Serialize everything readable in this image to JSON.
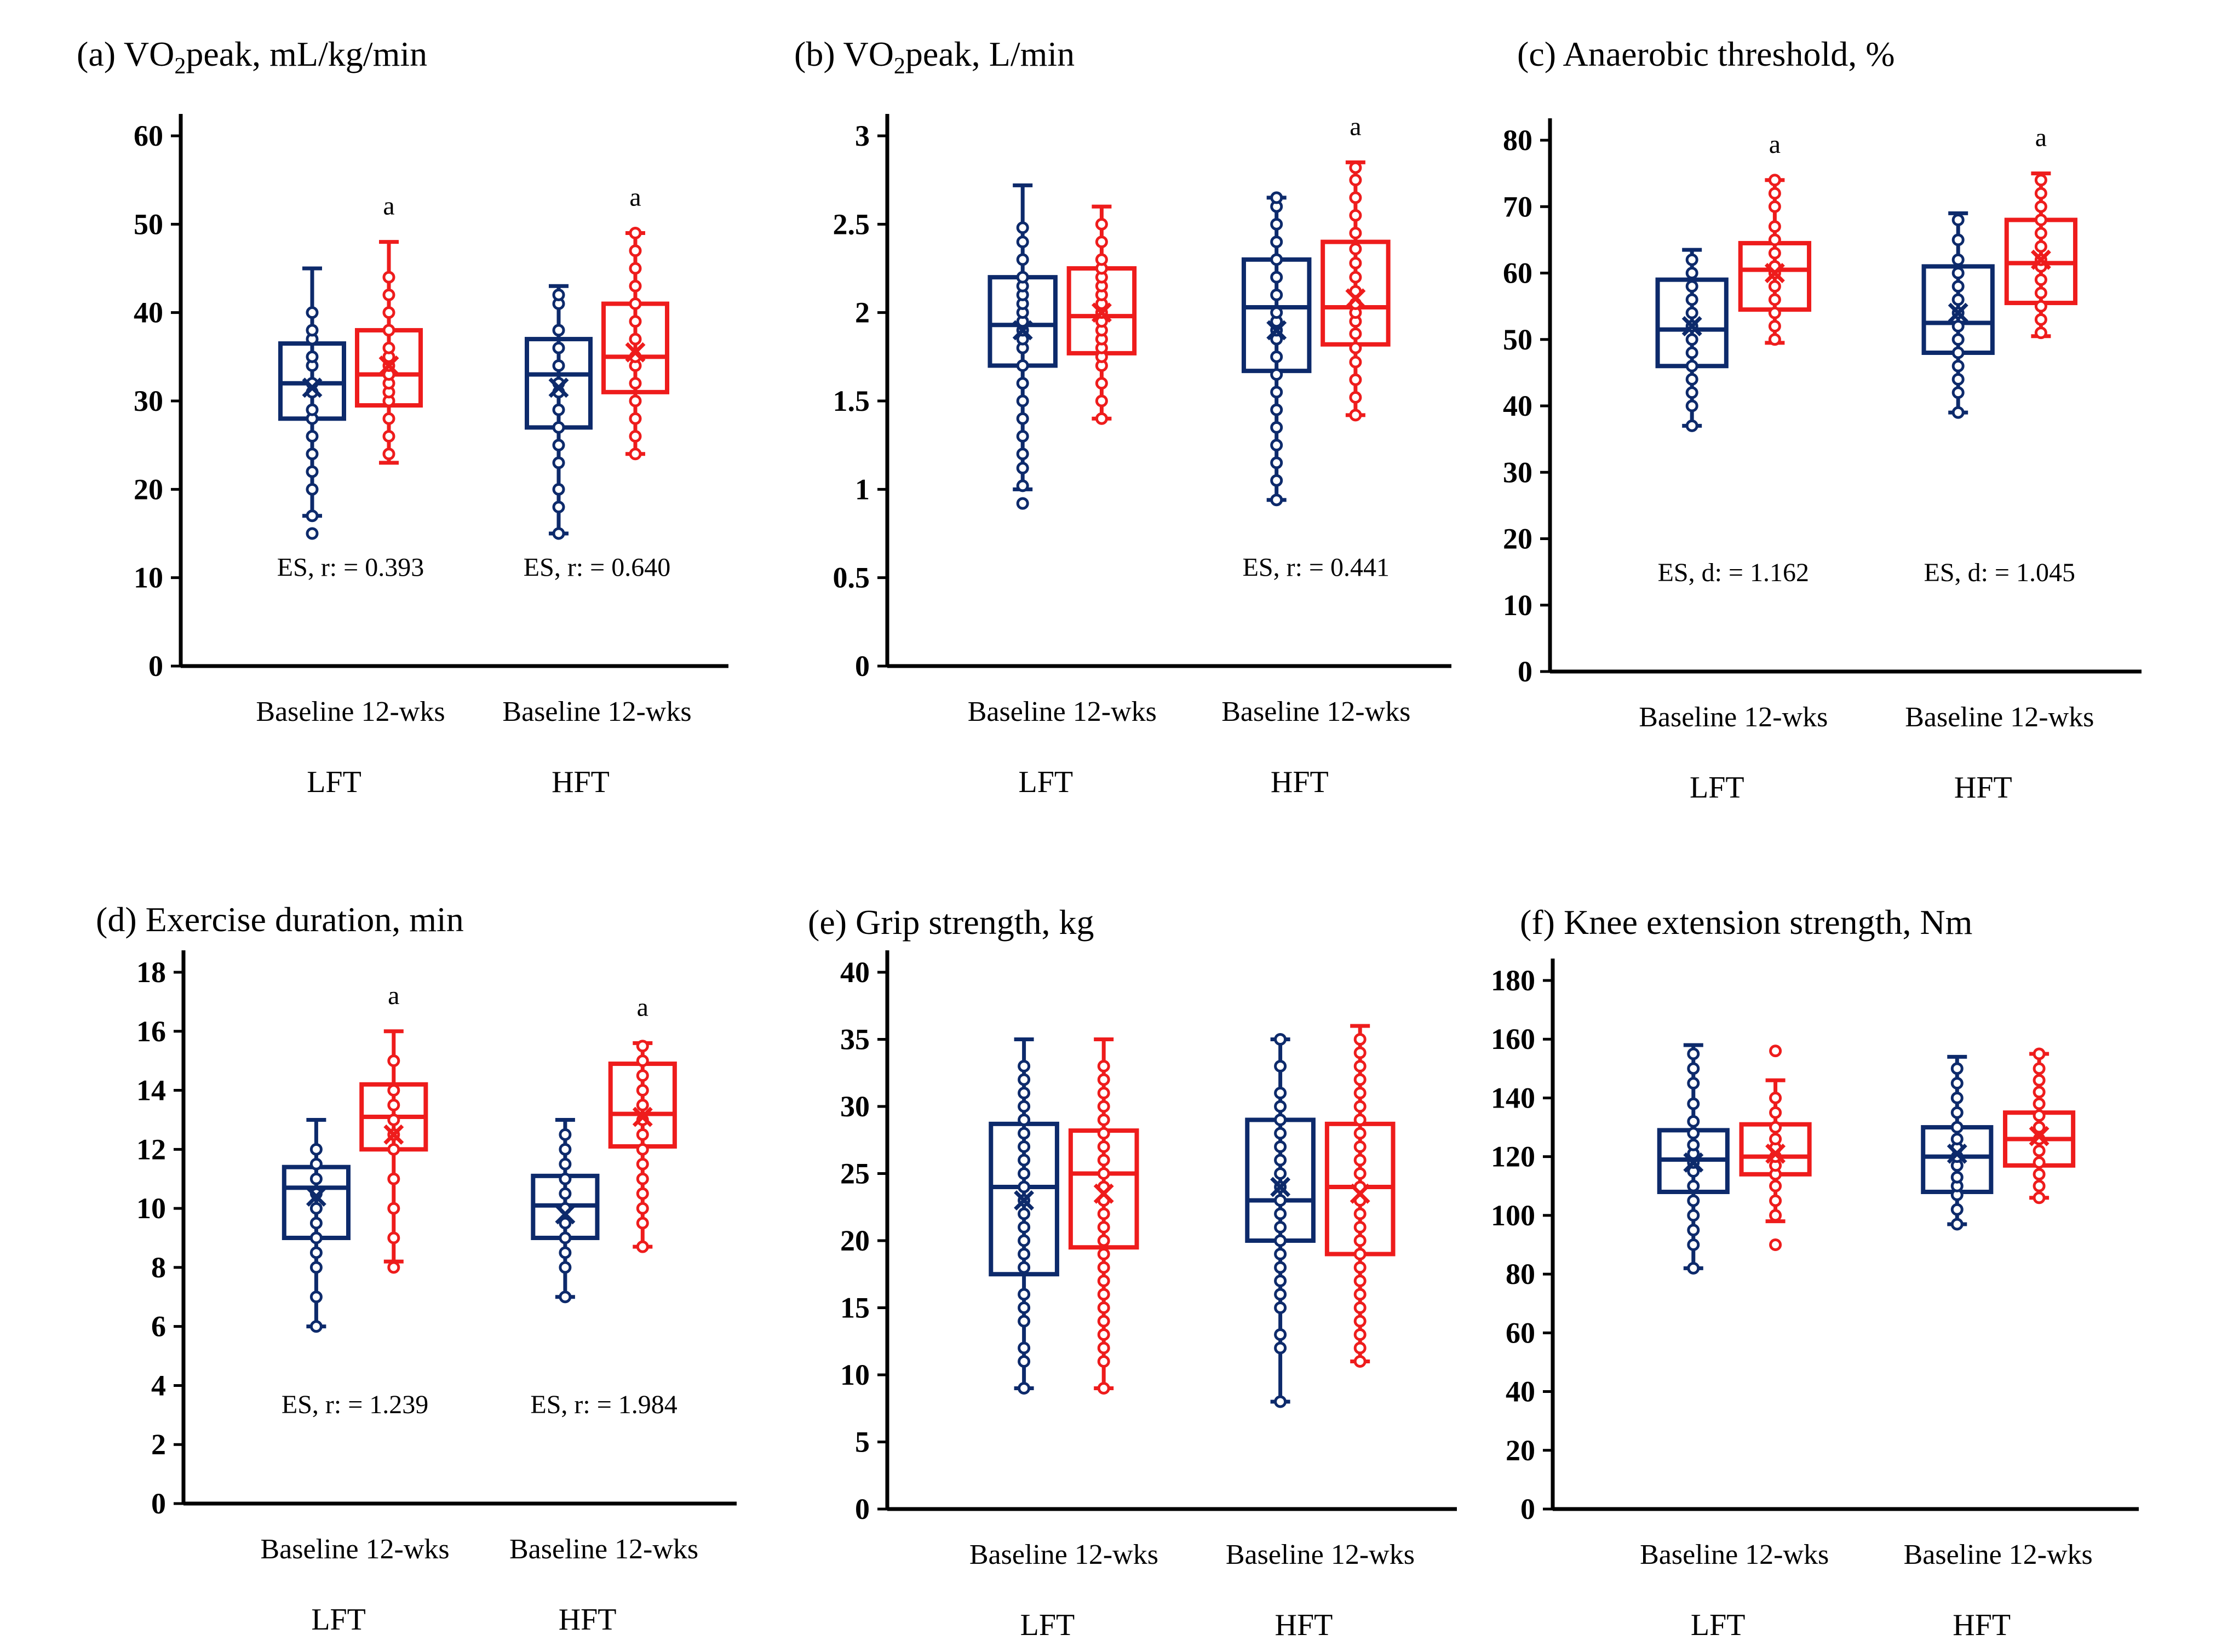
{
  "colors": {
    "baseline": "#0d2a6b",
    "followup": "#ee1c1c",
    "axis": "#000000"
  },
  "chart_data": [
    {
      "type": "box",
      "title_prefix": "(a) VO",
      "title_sub": "2",
      "title_suffix": "peak, mL/kg/min",
      "ylim": [
        0,
        60
      ],
      "yticks": [
        "0",
        "10",
        "20",
        "30",
        "40",
        "50",
        "60"
      ],
      "group_cat_label": "Baseline 12-wks",
      "groups": [
        {
          "name": "LFT",
          "es": "ES,  r: = 0.393",
          "sig": "a",
          "baseline": {
            "min": 17,
            "q1": 28,
            "median": 32,
            "q3": 36.5,
            "max": 45,
            "mean": 31.5,
            "points": [
              15,
              17,
              20,
              22,
              24,
              26,
              28,
              29,
              31,
              32,
              34,
              35,
              37,
              38,
              40
            ]
          },
          "followup": {
            "min": 23,
            "q1": 29.5,
            "median": 33,
            "q3": 38,
            "max": 48,
            "mean": 34,
            "points": [
              24,
              26,
              28,
              30,
              31,
              32,
              33,
              34,
              35,
              36,
              38,
              40,
              42,
              44
            ]
          }
        },
        {
          "name": "HFT",
          "es": "ES,  r: = 0.640",
          "sig": "a",
          "baseline": {
            "min": 15,
            "q1": 27,
            "median": 33,
            "q3": 37,
            "max": 43,
            "mean": 31.5,
            "points": [
              15,
              18,
              20,
              23,
              25,
              27,
              29,
              31,
              32,
              34,
              36,
              38,
              41,
              42
            ]
          },
          "followup": {
            "min": 24,
            "q1": 31,
            "median": 35,
            "q3": 41,
            "max": 49,
            "mean": 35.5,
            "points": [
              24,
              26,
              28,
              30,
              32,
              34,
              35,
              37,
              39,
              41,
              43,
              45,
              47,
              49
            ]
          }
        }
      ]
    },
    {
      "type": "box",
      "title_prefix": "(b) VO",
      "title_sub": "2",
      "title_suffix": "peak, L/min",
      "ylim": [
        0,
        3
      ],
      "yticks": [
        "0",
        "0.5",
        "1",
        "1.5",
        "2",
        "2.5",
        "3"
      ],
      "group_cat_label": "Baseline 12-wks",
      "groups": [
        {
          "name": "LFT",
          "es": "",
          "sig": "",
          "baseline": {
            "min": 1.0,
            "q1": 1.7,
            "median": 1.93,
            "q3": 2.2,
            "max": 2.72,
            "mean": 1.9,
            "points": [
              0.92,
              1.02,
              1.12,
              1.2,
              1.3,
              1.4,
              1.5,
              1.6,
              1.7,
              1.8,
              1.85,
              1.9,
              1.95,
              2.0,
              2.05,
              2.1,
              2.15,
              2.2,
              2.3,
              2.4,
              2.48
            ]
          },
          "followup": {
            "min": 1.4,
            "q1": 1.77,
            "median": 1.98,
            "q3": 2.25,
            "max": 2.6,
            "mean": 2.0,
            "points": [
              1.4,
              1.5,
              1.6,
              1.7,
              1.75,
              1.8,
              1.85,
              1.9,
              1.95,
              2.0,
              2.05,
              2.1,
              2.15,
              2.2,
              2.25,
              2.3,
              2.4,
              2.5
            ]
          }
        },
        {
          "name": "HFT",
          "es": "ES,  r: = 0.441",
          "sig": "a",
          "baseline": {
            "min": 0.94,
            "q1": 1.67,
            "median": 2.03,
            "q3": 2.3,
            "max": 2.65,
            "mean": 1.9,
            "points": [
              0.94,
              1.05,
              1.15,
              1.25,
              1.35,
              1.45,
              1.55,
              1.65,
              1.75,
              1.85,
              1.9,
              1.95,
              2.0,
              2.1,
              2.2,
              2.3,
              2.4,
              2.5,
              2.6,
              2.65
            ]
          },
          "followup": {
            "min": 1.42,
            "q1": 1.82,
            "median": 2.03,
            "q3": 2.4,
            "max": 2.85,
            "mean": 2.08,
            "points": [
              1.42,
              1.52,
              1.62,
              1.72,
              1.8,
              1.88,
              1.95,
              2.0,
              2.05,
              2.12,
              2.2,
              2.28,
              2.36,
              2.45,
              2.55,
              2.65,
              2.75,
              2.82
            ]
          }
        }
      ]
    },
    {
      "type": "box",
      "title_prefix": "(c) Anaerobic threshold, %",
      "title_sub": "",
      "title_suffix": "",
      "ylim": [
        0,
        80
      ],
      "yticks": [
        "0",
        "10",
        "20",
        "30",
        "40",
        "50",
        "60",
        "70",
        "80"
      ],
      "group_cat_label": "Baseline 12-wks",
      "groups": [
        {
          "name": "LFT",
          "es": "ES,  d: = 1.162",
          "sig": "a",
          "baseline": {
            "min": 37,
            "q1": 46,
            "median": 51.5,
            "q3": 59,
            "max": 63.5,
            "mean": 52,
            "points": [
              37,
              40,
              42,
              44,
              46,
              48,
              50,
              52,
              54,
              56,
              58,
              60,
              62
            ]
          },
          "followup": {
            "min": 49.5,
            "q1": 54.5,
            "median": 60.5,
            "q3": 64.5,
            "max": 74,
            "mean": 60,
            "points": [
              50,
              52,
              54,
              56,
              58,
              60,
              61,
              63,
              65,
              67,
              70,
              72,
              74
            ]
          }
        },
        {
          "name": "HFT",
          "es": "ES,  d: = 1.045",
          "sig": "a",
          "baseline": {
            "min": 39,
            "q1": 48,
            "median": 52.5,
            "q3": 61,
            "max": 69,
            "mean": 54,
            "points": [
              39,
              42,
              44,
              46,
              48,
              50,
              52,
              54,
              56,
              58,
              60,
              62,
              65,
              68
            ]
          },
          "followup": {
            "min": 50.5,
            "q1": 55.5,
            "median": 61.5,
            "q3": 68,
            "max": 75,
            "mean": 62,
            "points": [
              51,
              53,
              55,
              57,
              59,
              61,
              62,
              64,
              66,
              68,
              70,
              72,
              74
            ]
          }
        }
      ]
    },
    {
      "type": "box",
      "title_prefix": "(d) Exercise duration, min",
      "title_sub": "",
      "title_suffix": "",
      "ylim": [
        0,
        18
      ],
      "yticks": [
        "0",
        "2",
        "4",
        "6",
        "8",
        "10",
        "12",
        "14",
        "16",
        "18"
      ],
      "group_cat_label": "Baseline 12-wks",
      "groups": [
        {
          "name": "LFT",
          "es": "ES,  r: = 1.239",
          "sig": "a",
          "baseline": {
            "min": 6,
            "q1": 9,
            "median": 10.7,
            "q3": 11.4,
            "max": 13,
            "mean": 10.4,
            "points": [
              6,
              7,
              8,
              8.5,
              9,
              9.5,
              10,
              10.5,
              11,
              11.5,
              12
            ]
          },
          "followup": {
            "min": 8.2,
            "q1": 12,
            "median": 13.1,
            "q3": 14.2,
            "max": 16,
            "mean": 12.5,
            "points": [
              8,
              9,
              10,
              11,
              12,
              12.5,
              13,
              13.5,
              14,
              15
            ]
          }
        },
        {
          "name": "HFT",
          "es": "ES,  r: = 1.984",
          "sig": "a",
          "baseline": {
            "min": 7,
            "q1": 9,
            "median": 10.1,
            "q3": 11.1,
            "max": 13,
            "mean": 9.8,
            "points": [
              7,
              8,
              8.5,
              9,
              9.5,
              10,
              10.5,
              11,
              11.5,
              12,
              12.5
            ]
          },
          "followup": {
            "min": 8.7,
            "q1": 12.1,
            "median": 13.2,
            "q3": 14.9,
            "max": 15.6,
            "mean": 13.1,
            "points": [
              8.7,
              9.5,
              10,
              10.5,
              11,
              11.5,
              12,
              12.5,
              13,
              13.5,
              14,
              14.5,
              15,
              15.5
            ]
          }
        }
      ]
    },
    {
      "type": "box",
      "title_prefix": "(e) Grip strength, kg",
      "title_sub": "",
      "title_suffix": "",
      "ylim": [
        0,
        40
      ],
      "yticks": [
        "0",
        "5",
        "10",
        "15",
        "20",
        "25",
        "30",
        "35",
        "40"
      ],
      "group_cat_label": "Baseline 12-wks",
      "groups": [
        {
          "name": "LFT",
          "es": "",
          "sig": "",
          "baseline": {
            "min": 9,
            "q1": 17.5,
            "median": 24,
            "q3": 28.7,
            "max": 35,
            "mean": 23,
            "points": [
              9,
              11,
              12,
              14,
              15,
              16,
              18,
              19,
              20,
              21,
              22,
              23,
              24,
              25,
              26,
              27,
              28,
              29,
              30,
              31,
              32,
              33
            ]
          },
          "followup": {
            "min": 9,
            "q1": 19.5,
            "median": 25,
            "q3": 28.2,
            "max": 35,
            "mean": 23.5,
            "points": [
              9,
              11,
              12,
              13,
              14,
              15,
              16,
              17,
              18,
              19,
              20,
              21,
              22,
              23,
              24,
              25,
              26,
              27,
              28,
              29,
              30,
              31,
              32,
              33
            ]
          }
        },
        {
          "name": "HFT",
          "es": "",
          "sig": "",
          "baseline": {
            "min": 8,
            "q1": 20,
            "median": 23,
            "q3": 29,
            "max": 35,
            "mean": 24,
            "points": [
              8,
              12,
              13,
              15,
              16,
              17,
              18,
              19,
              20,
              21,
              22,
              23,
              24,
              25,
              26,
              27,
              28,
              29,
              30,
              31,
              33,
              35
            ]
          },
          "followup": {
            "min": 11,
            "q1": 19,
            "median": 24,
            "q3": 28.7,
            "max": 36,
            "mean": 23.5,
            "points": [
              11,
              12,
              13,
              14,
              15,
              16,
              17,
              18,
              19,
              20,
              21,
              22,
              23,
              24,
              25,
              26,
              27,
              28,
              29,
              30,
              31,
              32,
              33,
              34,
              35
            ]
          }
        }
      ]
    },
    {
      "type": "box",
      "title_prefix": "(f) Knee extension strength, Nm",
      "title_sub": "",
      "title_suffix": "",
      "ylim": [
        0,
        180
      ],
      "yticks": [
        "0",
        "20",
        "40",
        "60",
        "80",
        "100",
        "120",
        "140",
        "160",
        "180"
      ],
      "group_cat_label": "Baseline 12-wks",
      "groups": [
        {
          "name": "LFT",
          "es": "",
          "sig": "",
          "baseline": {
            "min": 82,
            "q1": 108,
            "median": 119,
            "q3": 129,
            "max": 158,
            "mean": 118,
            "points": [
              82,
              90,
              95,
              100,
              105,
              110,
              115,
              118,
              121,
              124,
              128,
              132,
              138,
              145,
              150,
              155
            ]
          },
          "followup": {
            "min": 98,
            "q1": 114,
            "median": 120,
            "q3": 131,
            "max": 146,
            "mean": 121,
            "points": [
              90,
              100,
              105,
              110,
              114,
              117,
              120,
              123,
              126,
              130,
              135,
              140,
              156
            ]
          }
        },
        {
          "name": "HFT",
          "es": "",
          "sig": "",
          "baseline": {
            "min": 97,
            "q1": 108,
            "median": 120,
            "q3": 130,
            "max": 154,
            "mean": 121,
            "points": [
              97,
              102,
              107,
              110,
              113,
              117,
              120,
              123,
              126,
              130,
              135,
              140,
              145,
              150
            ]
          },
          "followup": {
            "min": 106,
            "q1": 117,
            "median": 126,
            "q3": 135,
            "max": 155,
            "mean": 127,
            "points": [
              106,
              110,
              114,
              118,
              122,
              126,
              130,
              134,
              138,
              142,
              146,
              150,
              155
            ]
          }
        }
      ]
    }
  ]
}
